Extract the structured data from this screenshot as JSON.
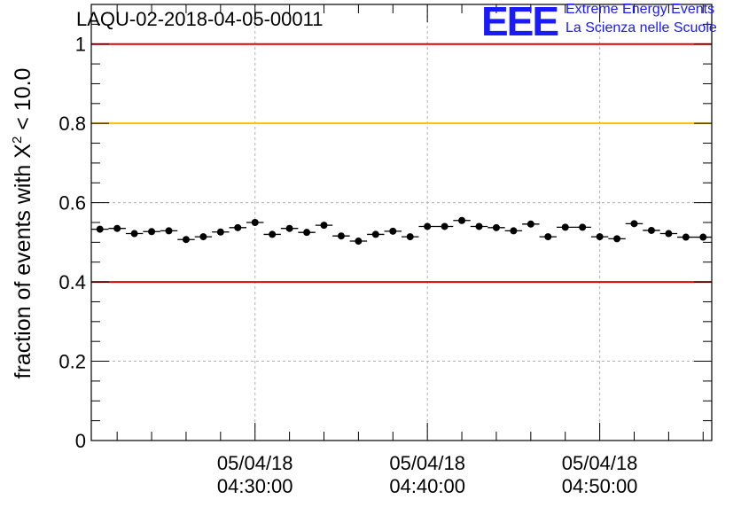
{
  "header": {
    "run_title": "LAQU-02-2018-04-05-00011"
  },
  "logo": {
    "mark": "EEE",
    "line1": "Extreme Energy Events",
    "line2": "La Scienza nelle Scuole",
    "color": "#1a1aff"
  },
  "chart_data": {
    "type": "scatter",
    "title": "LAQU-02-2018-04-05-00011",
    "ylabel": "fraction of events with χ² < 10.0",
    "ylabel_parts": {
      "pre": "fraction of events with ",
      "chi": "X",
      "sup": "2",
      "post": " < 10.0"
    },
    "xlabel": "",
    "ylim": [
      0,
      1.1
    ],
    "y_ticks": [
      0,
      0.2,
      0.4,
      0.6,
      0.8,
      1.0
    ],
    "y_tick_labels": [
      "0",
      "0.2",
      "0.4",
      "0.6",
      "0.8",
      "1"
    ],
    "x_range_minutes": [
      20.5,
      56.5
    ],
    "x_tick_labels": [
      {
        "minute": 30,
        "date": "05/04/18",
        "time": "04:30:00"
      },
      {
        "minute": 40,
        "date": "05/04/18",
        "time": "04:40:00"
      },
      {
        "minute": 50,
        "date": "05/04/18",
        "time": "04:50:00"
      }
    ],
    "reference_lines": [
      {
        "value": 1.0,
        "color": "#e00000"
      },
      {
        "value": 0.8,
        "color": "#ffc000"
      },
      {
        "value": 0.4,
        "color": "#e00000"
      }
    ],
    "grid": true,
    "series": [
      {
        "name": "fraction",
        "x_minutes": [
          21,
          22,
          23,
          24,
          25,
          26,
          27,
          28,
          29,
          30,
          31,
          32,
          33,
          34,
          35,
          36,
          37,
          38,
          39,
          40,
          41,
          42,
          43,
          44,
          45,
          46,
          47,
          48,
          49,
          50,
          51,
          52,
          53,
          54,
          55,
          56
        ],
        "values": [
          0.533,
          0.535,
          0.522,
          0.527,
          0.529,
          0.507,
          0.514,
          0.526,
          0.537,
          0.55,
          0.52,
          0.535,
          0.525,
          0.543,
          0.516,
          0.503,
          0.52,
          0.528,
          0.514,
          0.54,
          0.54,
          0.555,
          0.54,
          0.537,
          0.529,
          0.546,
          0.514,
          0.538,
          0.538,
          0.514,
          0.509,
          0.547,
          0.53,
          0.522,
          0.513,
          0.513
        ],
        "error": 0.007,
        "color": "#000000"
      }
    ]
  }
}
